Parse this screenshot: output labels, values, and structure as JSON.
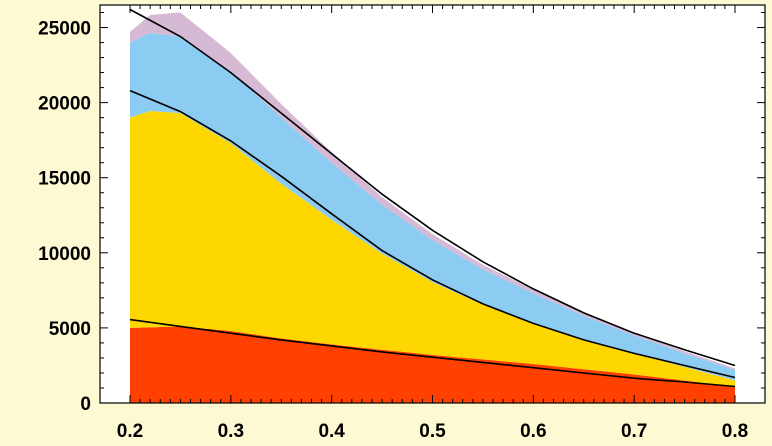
{
  "chart_data": {
    "type": "area",
    "stacked": true,
    "title": "",
    "xlabel": "",
    "ylabel": "",
    "xlim": [
      0.2,
      0.8
    ],
    "ylim": [
      0,
      26500
    ],
    "grid": false,
    "legend": "none",
    "x_ticks": [
      "0.2",
      "0.3",
      "0.4",
      "0.5",
      "0.6",
      "0.7",
      "0.8"
    ],
    "y_ticks": [
      "0",
      "5000",
      "10000",
      "15000",
      "20000",
      "25000"
    ],
    "x_tick_values": [
      0.2,
      0.3,
      0.4,
      0.5,
      0.6,
      0.7,
      0.8
    ],
    "y_tick_values": [
      0,
      5000,
      10000,
      15000,
      20000,
      25000
    ],
    "colors": {
      "background": "#fdf9d3",
      "plot_background": "#ffffff"
    },
    "series": [
      {
        "color": "#ff4000",
        "x": [
          0.2,
          0.25,
          0.3,
          0.35,
          0.4,
          0.45,
          0.5,
          0.55,
          0.6,
          0.65,
          0.7,
          0.75,
          0.8
        ],
        "values": [
          5000,
          5100,
          4800,
          4300,
          3900,
          3550,
          3200,
          2900,
          2600,
          2250,
          1900,
          1500,
          1050
        ]
      },
      {
        "color": "#ffd700",
        "x": [
          0.2,
          0.22,
          0.25,
          0.3,
          0.35,
          0.4,
          0.45,
          0.5,
          0.55,
          0.6,
          0.65,
          0.7,
          0.75,
          0.8
        ],
        "values": [
          14000,
          14400,
          14200,
          12500,
          10300,
          8300,
          6400,
          4850,
          3650,
          2750,
          2000,
          1400,
          900,
          450
        ]
      },
      {
        "color": "#8ccbf2",
        "x": [
          0.2,
          0.22,
          0.25,
          0.3,
          0.35,
          0.4,
          0.45,
          0.5,
          0.55,
          0.6,
          0.65,
          0.7,
          0.75,
          0.8
        ],
        "values": [
          5000,
          5200,
          5100,
          4800,
          4400,
          3800,
          3250,
          2800,
          2350,
          1950,
          1550,
          1200,
          900,
          700
        ]
      },
      {
        "color": "#d6b9d4",
        "x": [
          0.2,
          0.22,
          0.25,
          0.3,
          0.35,
          0.4,
          0.45,
          0.5,
          0.55,
          0.6,
          0.65,
          0.7,
          0.75,
          0.8
        ],
        "values": [
          700,
          1200,
          1600,
          1200,
          900,
          700,
          500,
          400,
          300,
          250,
          200,
          150,
          150,
          100
        ]
      }
    ],
    "fit_curves": [
      {
        "color": "#000000",
        "x": [
          0.2,
          0.25,
          0.3,
          0.35,
          0.4,
          0.45,
          0.5,
          0.55,
          0.6,
          0.65,
          0.7,
          0.75,
          0.8
        ],
        "y": [
          5550,
          5100,
          4650,
          4200,
          3800,
          3400,
          3050,
          2700,
          2350,
          2000,
          1650,
          1400,
          1100
        ]
      },
      {
        "color": "#000000",
        "x": [
          0.2,
          0.25,
          0.3,
          0.35,
          0.4,
          0.45,
          0.5,
          0.55,
          0.6,
          0.65,
          0.7,
          0.75,
          0.8
        ],
        "y": [
          20800,
          19400,
          17450,
          15100,
          12600,
          10150,
          8200,
          6600,
          5300,
          4200,
          3300,
          2500,
          1700
        ]
      },
      {
        "color": "#000000",
        "x": [
          0.2,
          0.25,
          0.3,
          0.35,
          0.4,
          0.45,
          0.5,
          0.55,
          0.6,
          0.65,
          0.7,
          0.75,
          0.8
        ],
        "y": [
          26200,
          24400,
          22000,
          19300,
          16600,
          13900,
          11500,
          9400,
          7600,
          6000,
          4650,
          3550,
          2500
        ]
      }
    ]
  }
}
